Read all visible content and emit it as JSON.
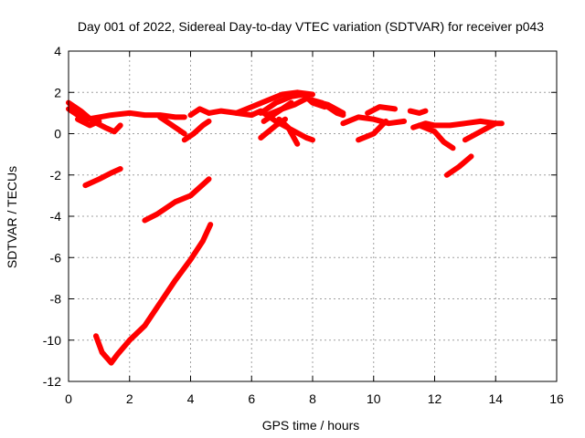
{
  "chart_data": {
    "type": "line",
    "title": "Day 001 of 2022, Sidereal Day-to-day VTEC variation (SDTVAR) for receiver p043",
    "xlabel": "GPS time / hours",
    "ylabel": "SDTVAR / TECUs",
    "xlim": [
      0,
      16
    ],
    "ylim": [
      -12,
      4
    ],
    "xticks": [
      "0",
      "2",
      "4",
      "6",
      "8",
      "10",
      "12",
      "14",
      "16"
    ],
    "yticks": [
      "4",
      "2",
      "0",
      "-2",
      "-4",
      "-6",
      "-8",
      "-10",
      "-12"
    ],
    "grid": true,
    "color": "#ff0000",
    "series": [
      {
        "x": [
          0.0,
          0.3,
          0.6,
          1.0,
          1.4,
          2.0,
          2.5,
          3.0,
          3.5,
          3.8
        ],
        "y": [
          1.2,
          0.9,
          0.7,
          0.8,
          0.9,
          1.0,
          0.9,
          0.9,
          0.8,
          0.8
        ]
      },
      {
        "x": [
          0.0,
          0.4,
          0.8,
          1.2,
          1.5,
          1.7
        ],
        "y": [
          1.5,
          1.1,
          0.6,
          0.3,
          0.1,
          0.4
        ]
      },
      {
        "x": [
          0.3,
          0.7,
          1.0
        ],
        "y": [
          0.7,
          0.4,
          0.6
        ]
      },
      {
        "x": [
          3.0,
          3.5,
          3.8
        ],
        "y": [
          0.8,
          0.3,
          0.0
        ]
      },
      {
        "x": [
          3.8,
          4.1,
          4.4,
          4.6
        ],
        "y": [
          -0.3,
          0.0,
          0.4,
          0.6
        ]
      },
      {
        "x": [
          4.0,
          4.3,
          4.6
        ],
        "y": [
          0.9,
          1.2,
          1.0
        ]
      },
      {
        "x": [
          4.6,
          5.0,
          5.5,
          6.0,
          6.3
        ],
        "y": [
          1.0,
          1.1,
          1.0,
          0.9,
          1.1
        ]
      },
      {
        "x": [
          5.5,
          6.0,
          6.5,
          7.0,
          7.5,
          8.0
        ],
        "y": [
          1.0,
          1.3,
          1.6,
          1.9,
          2.0,
          1.9
        ]
      },
      {
        "x": [
          6.3,
          6.8,
          7.3,
          7.7,
          8.0,
          8.4
        ],
        "y": [
          1.0,
          1.5,
          1.8,
          1.9,
          1.5,
          1.3
        ]
      },
      {
        "x": [
          6.4,
          6.9,
          7.3
        ],
        "y": [
          0.6,
          1.1,
          1.5
        ]
      },
      {
        "x": [
          6.5,
          7.0,
          7.4,
          7.8,
          8.3,
          8.8,
          9.0
        ],
        "y": [
          0.9,
          1.2,
          1.4,
          1.7,
          1.5,
          1.0,
          0.9
        ]
      },
      {
        "x": [
          6.4,
          6.8,
          7.3,
          7.8,
          8.0
        ],
        "y": [
          1.0,
          0.6,
          0.2,
          -0.2,
          -0.3
        ]
      },
      {
        "x": [
          6.3,
          6.8,
          7.1
        ],
        "y": [
          -0.2,
          0.4,
          0.7
        ]
      },
      {
        "x": [
          6.9,
          7.2,
          7.5
        ],
        "y": [
          0.7,
          0.3,
          -0.5
        ]
      },
      {
        "x": [
          8.0,
          8.5,
          9.0
        ],
        "y": [
          1.6,
          1.4,
          1.0
        ]
      },
      {
        "x": [
          9.0,
          9.5,
          10.0,
          10.5,
          11.0
        ],
        "y": [
          0.5,
          0.8,
          0.7,
          0.5,
          0.6
        ]
      },
      {
        "x": [
          9.5,
          10.0,
          10.4
        ],
        "y": [
          -0.3,
          0.0,
          0.6
        ]
      },
      {
        "x": [
          9.8,
          10.2,
          10.7
        ],
        "y": [
          1.0,
          1.3,
          1.2
        ]
      },
      {
        "x": [
          11.2,
          11.5,
          11.7
        ],
        "y": [
          1.1,
          1.0,
          1.1
        ]
      },
      {
        "x": [
          11.3,
          11.7,
          12.0,
          12.5,
          13.0,
          13.5,
          14.0,
          14.2
        ],
        "y": [
          0.3,
          0.5,
          0.4,
          0.4,
          0.5,
          0.6,
          0.5,
          0.5
        ]
      },
      {
        "x": [
          11.5,
          12.0,
          12.3,
          12.6
        ],
        "y": [
          0.4,
          0.1,
          -0.4,
          -0.7
        ]
      },
      {
        "x": [
          13.0,
          13.5,
          14.0
        ],
        "y": [
          -0.3,
          0.1,
          0.5
        ]
      },
      {
        "x": [
          0.55,
          1.0,
          1.4,
          1.7
        ],
        "y": [
          -2.5,
          -2.2,
          -1.9,
          -1.7
        ]
      },
      {
        "x": [
          2.5,
          2.9,
          3.5,
          4.0,
          4.6
        ],
        "y": [
          -4.2,
          -3.9,
          -3.3,
          -3.0,
          -2.2
        ]
      },
      {
        "x": [
          12.4,
          12.8,
          13.2
        ],
        "y": [
          -2.0,
          -1.6,
          -1.1
        ]
      },
      {
        "x": [
          0.9,
          1.1,
          1.4,
          1.6,
          2.0,
          2.5,
          3.0,
          3.5,
          4.0,
          4.4,
          4.65
        ],
        "y": [
          -9.8,
          -10.6,
          -11.1,
          -10.7,
          -10.0,
          -9.3,
          -8.2,
          -7.1,
          -6.1,
          -5.2,
          -4.4
        ]
      }
    ]
  }
}
